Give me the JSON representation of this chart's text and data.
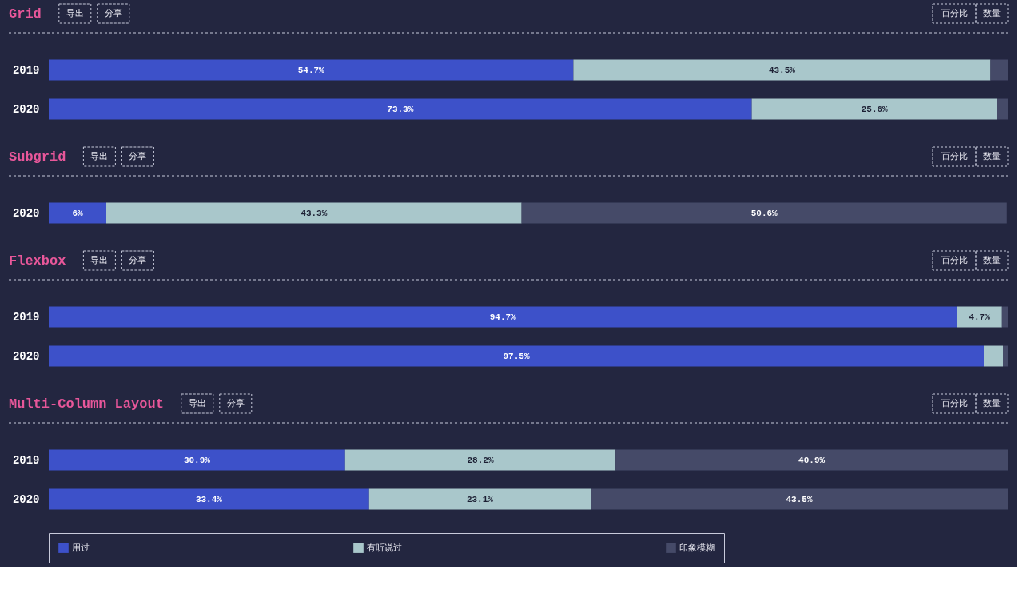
{
  "chart_data": [
    {
      "type": "bar",
      "orientation": "horizontal",
      "stacked": true,
      "title": "Grid",
      "categories": [
        "2019",
        "2020"
      ],
      "xlim": [
        0,
        100
      ],
      "tick_labels": "y",
      "legend": false,
      "annotations": [
        "导出",
        "分享",
        "百分比",
        "数量"
      ],
      "series": [
        {
          "color": "#3d51c9",
          "values": [
            54.7,
            73.3
          ],
          "value_labels": [
            "54.7%",
            "73.3%"
          ]
        },
        {
          "color": "#a9c7cb",
          "values": [
            43.5,
            25.6
          ],
          "value_labels": [
            "43.5%",
            "25.6%"
          ]
        },
        {
          "color": "#454a68",
          "values": [
            1.8,
            1.1
          ],
          "value_labels": [
            null,
            null
          ]
        }
      ]
    },
    {
      "type": "bar",
      "orientation": "horizontal",
      "stacked": true,
      "title": "Subgrid",
      "categories": [
        "2020"
      ],
      "xlim": [
        0,
        100
      ],
      "tick_labels": "y",
      "legend": false,
      "annotations": [
        "导出",
        "分享",
        "百分比",
        "数量"
      ],
      "series": [
        {
          "color": "#3d51c9",
          "values": [
            6
          ],
          "value_labels": [
            "6%"
          ]
        },
        {
          "color": "#a9c7cb",
          "values": [
            43.3
          ],
          "value_labels": [
            "43.3%"
          ]
        },
        {
          "color": "#454a68",
          "values": [
            50.6
          ],
          "value_labels": [
            "50.6%"
          ]
        }
      ]
    },
    {
      "type": "bar",
      "orientation": "horizontal",
      "stacked": true,
      "title": "Flexbox",
      "categories": [
        "2019",
        "2020"
      ],
      "xlim": [
        0,
        100
      ],
      "tick_labels": "y",
      "legend": false,
      "annotations": [
        "导出",
        "分享",
        "百分比",
        "数量"
      ],
      "series": [
        {
          "color": "#3d51c9",
          "values": [
            94.7,
            97.5
          ],
          "value_labels": [
            "94.7%",
            "97.5%"
          ]
        },
        {
          "color": "#a9c7cb",
          "values": [
            4.7,
            2.0
          ],
          "value_labels": [
            "4.7%",
            null
          ]
        },
        {
          "color": "#454a68",
          "values": [
            0.6,
            0.5
          ],
          "value_labels": [
            null,
            null
          ]
        }
      ]
    },
    {
      "type": "bar",
      "orientation": "horizontal",
      "stacked": true,
      "title": "Multi-Column Layout",
      "categories": [
        "2019",
        "2020"
      ],
      "xlim": [
        0,
        100
      ],
      "tick_labels": "y",
      "legend": "bottom",
      "annotations": [
        "导出",
        "分享",
        "百分比",
        "数量"
      ],
      "series": [
        {
          "name": "用过",
          "color": "#3d51c9",
          "values": [
            30.9,
            33.4
          ],
          "value_labels": [
            "30.9%",
            "33.4%"
          ]
        },
        {
          "name": "有听说过",
          "color": "#a9c7cb",
          "values": [
            28.2,
            23.1
          ],
          "value_labels": [
            "28.2%",
            "23.1%"
          ]
        },
        {
          "name": "印象模糊",
          "color": "#454a68",
          "values": [
            40.9,
            43.5
          ],
          "value_labels": [
            "40.9%",
            "43.5%"
          ]
        }
      ]
    }
  ]
}
